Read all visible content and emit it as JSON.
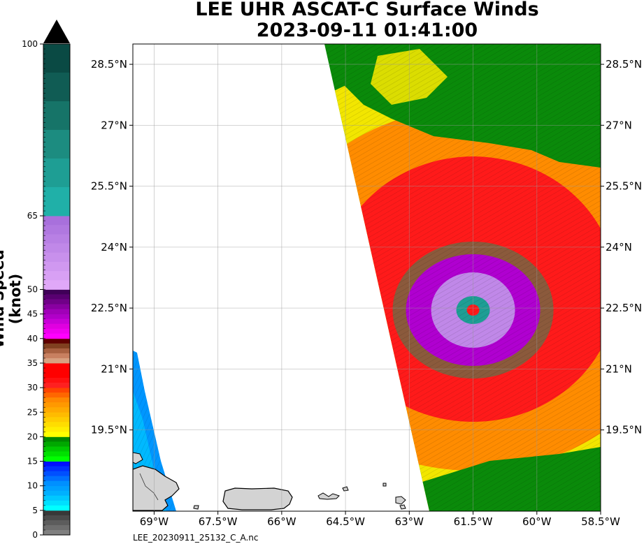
{
  "title_line1": "LEE UHR ASCAT-C Surface Winds",
  "title_line2": "2023-09-11 01:41:00",
  "footer": "LEE_20230911_25132_C_A.nc",
  "colorbar": {
    "label": "Wind Speed (knot)",
    "min": 0,
    "max": 100,
    "tick_labels": [
      "0",
      "5",
      "10",
      "15",
      "20",
      "25",
      "30",
      "35",
      "40",
      "45",
      "50",
      "65",
      "100"
    ],
    "tick_values": [
      0,
      5,
      10,
      15,
      20,
      25,
      30,
      35,
      40,
      45,
      50,
      65,
      100
    ],
    "segments": [
      {
        "from": 0,
        "to": 5,
        "colors": [
          "#808080",
          "#6e6e6e",
          "#5c5c5c",
          "#4a4a4a",
          "#383838"
        ]
      },
      {
        "from": 5,
        "to": 10,
        "colors": [
          "#00ffff",
          "#00e0ff",
          "#00c8ff",
          "#00b0ff",
          "#00a0ff"
        ]
      },
      {
        "from": 10,
        "to": 15,
        "colors": [
          "#0090ff",
          "#0070ff",
          "#0050ff",
          "#0030ff",
          "#0010ff"
        ]
      },
      {
        "from": 15,
        "to": 20,
        "colors": [
          "#00ff00",
          "#00e000",
          "#00c800",
          "#00a800",
          "#008800"
        ]
      },
      {
        "from": 20,
        "to": 25,
        "colors": [
          "#ffff00",
          "#ffee00",
          "#ffdd00",
          "#ffcc00",
          "#ffbb00"
        ]
      },
      {
        "from": 25,
        "to": 30,
        "colors": [
          "#ffaa00",
          "#ff9900",
          "#ff8800",
          "#ff6600",
          "#ff4400"
        ]
      },
      {
        "from": 30,
        "to": 35,
        "colors": [
          "#ff2020",
          "#ff1010",
          "#ff0000",
          "#ff0000",
          "#ff0000"
        ]
      },
      {
        "from": 35,
        "to": 40,
        "colors": [
          "#d8a080",
          "#c88060",
          "#a86040",
          "#804020",
          "#600000"
        ]
      },
      {
        "from": 40,
        "to": 45,
        "colors": [
          "#ff00ff",
          "#f000f0",
          "#e000e0",
          "#c800d8",
          "#b000c8"
        ]
      },
      {
        "from": 45,
        "to": 50,
        "colors": [
          "#a000b8",
          "#8800a0",
          "#700088",
          "#580070",
          "#400058"
        ]
      },
      {
        "from": 50,
        "to": 65,
        "colors": [
          "#e0a8f8",
          "#d8a0f4",
          "#d098f0",
          "#c890ec",
          "#c088e8",
          "#b880e4",
          "#b078e0",
          "#a870dc"
        ]
      },
      {
        "from": 65,
        "to": 100,
        "colors": [
          "#20b0a8",
          "#1e9e94",
          "#1c8c80",
          "#167468",
          "#105c54",
          "#0a4a44"
        ]
      }
    ]
  },
  "map": {
    "lon_range": [
      -69.5,
      -58.5
    ],
    "lat_range": [
      17.5,
      29.0
    ],
    "lon_labels": [
      "69°W",
      "67.5°W",
      "66°W",
      "64.5°W",
      "63°W",
      "61.5°W",
      "60°W",
      "58.5°W"
    ],
    "lon_values": [
      -69,
      -67.5,
      -66,
      -64.5,
      -63,
      -61.5,
      -60,
      -58.5
    ],
    "lat_labels": [
      "19.5°N",
      "21°N",
      "22.5°N",
      "24°N",
      "25.5°N",
      "27°N",
      "28.5°N"
    ],
    "lat_values": [
      19.5,
      21,
      22.5,
      24,
      25.5,
      27,
      28.5
    ],
    "storm_center": {
      "lon": -61.5,
      "lat": 22.45
    },
    "grid": true
  },
  "colors": {
    "land": "#d3d3d3",
    "swath_outer": "#0a8a0a",
    "ring_yellow": "#f2e600",
    "ring_orange": "#ff8c00",
    "ring_red": "#ff1a1a",
    "ring_brown": "#8b5a3c",
    "ring_magenta": "#b000d0",
    "ring_lavender": "#c088e8",
    "ring_teal": "#1e9e94"
  }
}
